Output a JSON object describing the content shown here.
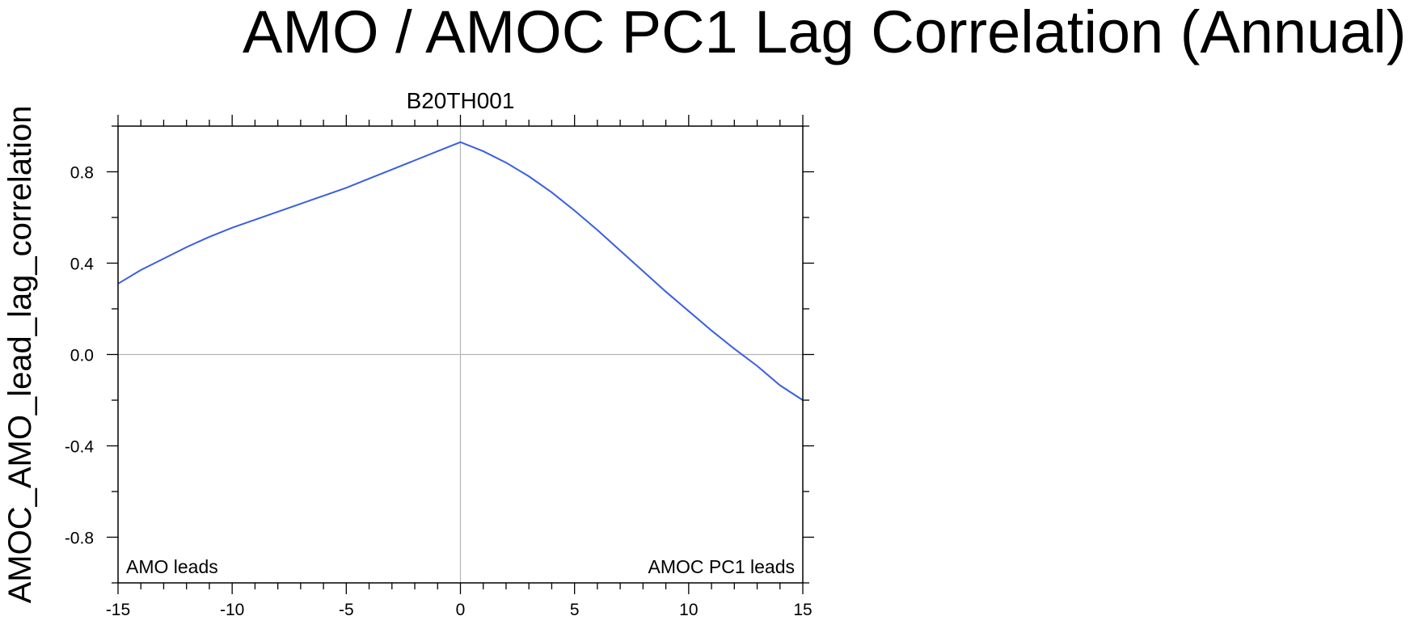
{
  "title": "AMO / AMOC PC1 Lag Correlation (Annual)",
  "chart_data": {
    "type": "line",
    "title": "AMO / AMOC PC1 Lag Correlation (Annual)",
    "subtitle": "B20TH001",
    "xlabel": "",
    "ylabel": "AMOC_AMO_lead_lag_correlation",
    "xlim": [
      -15,
      15
    ],
    "ylim": [
      -1.0,
      1.0
    ],
    "x_ticks": [
      -15,
      -10,
      -5,
      0,
      5,
      10,
      15
    ],
    "x_tick_labels": [
      "-15",
      "-10",
      "-5",
      "0",
      "5",
      "10",
      "15"
    ],
    "y_ticks": [
      -0.8,
      -0.4,
      0.0,
      0.4,
      0.8
    ],
    "y_tick_labels": [
      "-0.8",
      "-0.4",
      "0.0",
      "0.4",
      "0.8"
    ],
    "annotations": {
      "left": "AMO leads",
      "right": "AMOC PC1 leads"
    },
    "reference_lines": {
      "x": 0,
      "y": 0
    },
    "series": [
      {
        "name": "B20TH001",
        "color": "#3a5fe0",
        "x": [
          -15,
          -14,
          -13,
          -12,
          -11,
          -10,
          -9,
          -8,
          -7,
          -6,
          -5,
          -4,
          -3,
          -2,
          -1,
          0,
          1,
          2,
          3,
          4,
          5,
          6,
          7,
          8,
          9,
          10,
          11,
          12,
          13,
          14,
          15
        ],
        "y": [
          0.31,
          0.37,
          0.42,
          0.47,
          0.515,
          0.555,
          0.59,
          0.625,
          0.66,
          0.695,
          0.73,
          0.77,
          0.81,
          0.85,
          0.89,
          0.93,
          0.89,
          0.84,
          0.78,
          0.71,
          0.63,
          0.545,
          0.455,
          0.365,
          0.275,
          0.19,
          0.105,
          0.025,
          -0.05,
          -0.135,
          -0.2
        ]
      }
    ]
  }
}
